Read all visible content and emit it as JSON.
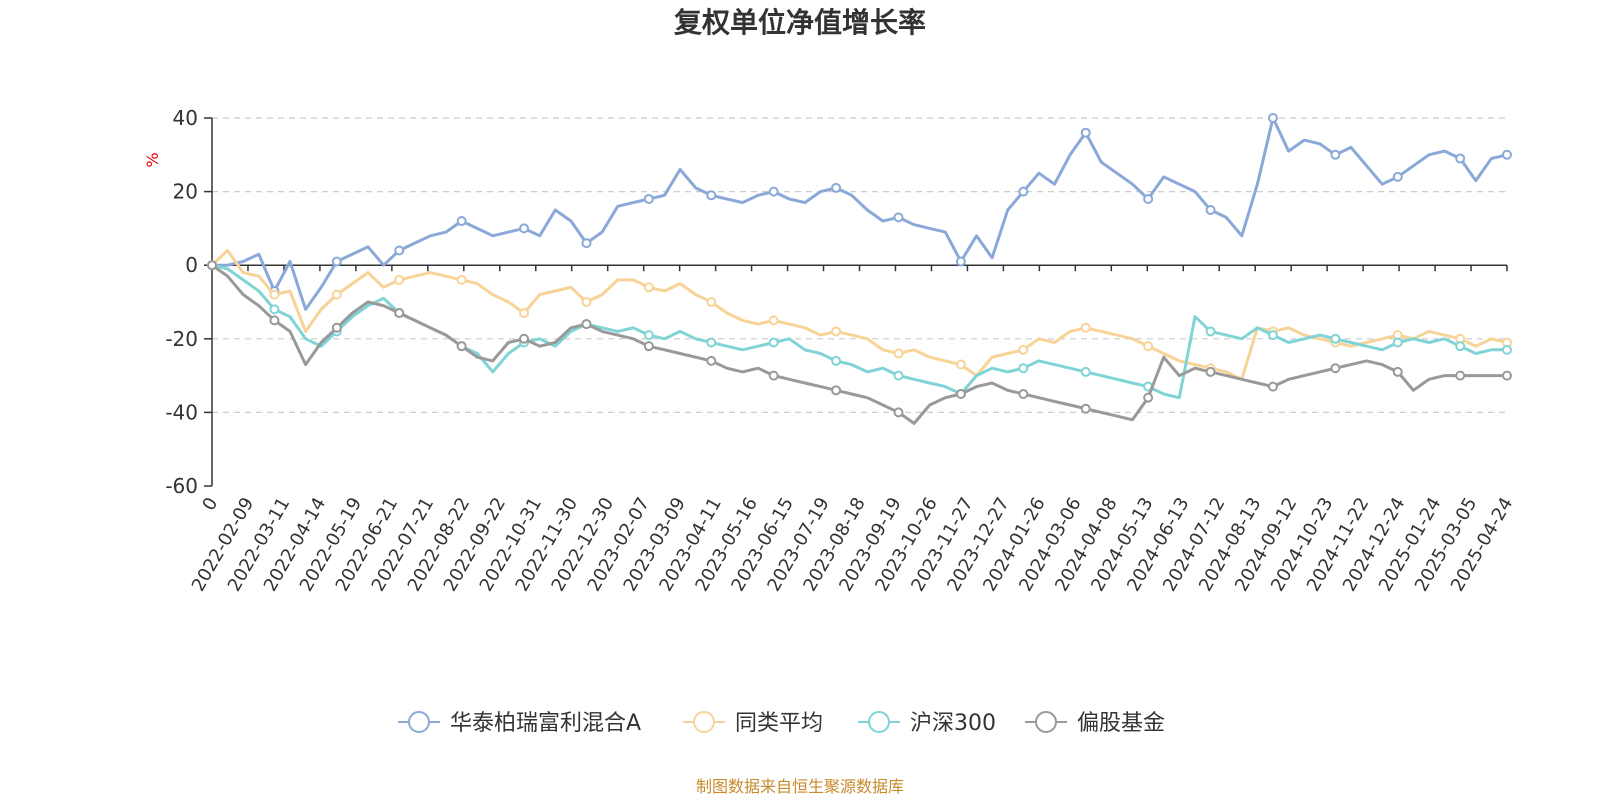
{
  "chart_data": {
    "type": "line",
    "title": "复权单位净值增长率",
    "ylabel": "%",
    "ylim": [
      -60,
      40
    ],
    "yticks": [
      40,
      20,
      0,
      -20,
      -40,
      -60
    ],
    "xtick_labels": [
      "0",
      "2022-02-09",
      "2022-03-11",
      "2022-04-14",
      "2022-05-19",
      "2022-06-21",
      "2022-07-21",
      "2022-08-22",
      "2022-09-22",
      "2022-10-31",
      "2022-11-30",
      "2022-12-30",
      "2023-02-07",
      "2023-03-09",
      "2023-04-11",
      "2023-05-16",
      "2023-06-15",
      "2023-07-19",
      "2023-08-18",
      "2023-09-19",
      "2023-10-26",
      "2023-11-27",
      "2023-12-27",
      "2024-01-26",
      "2024-03-06",
      "2024-04-08",
      "2024-05-13",
      "2024-06-13",
      "2024-07-12",
      "2024-08-13",
      "2024-09-12",
      "2024-10-23",
      "2024-11-22",
      "2024-12-24",
      "2025-01-24",
      "2025-03-05",
      "2025-04-24"
    ],
    "grid": true,
    "legend_position": "bottom",
    "source_note": "制图数据来自恒生聚源数据库",
    "series": [
      {
        "name": "华泰柏瑞富利混合A",
        "color": "#8aa8d8",
        "values": [
          0,
          0,
          1,
          3,
          -7,
          1,
          -12,
          -6,
          1,
          3,
          5,
          0,
          4,
          6,
          8,
          9,
          12,
          10,
          8,
          9,
          10,
          8,
          15,
          12,
          6,
          9,
          16,
          17,
          18,
          19,
          26,
          21,
          19,
          18,
          17,
          19,
          20,
          18,
          17,
          20,
          21,
          19,
          15,
          12,
          13,
          11,
          10,
          9,
          1,
          8,
          2,
          15,
          20,
          25,
          22,
          30,
          36,
          28,
          25,
          22,
          18,
          24,
          22,
          20,
          15,
          13,
          8,
          22,
          40,
          31,
          34,
          33,
          30,
          32,
          27,
          22,
          24,
          27,
          30,
          31,
          29,
          23,
          29,
          30
        ]
      },
      {
        "name": "同类平均",
        "color": "#f8d397",
        "values": [
          0,
          4,
          -2,
          -3,
          -8,
          -7,
          -18,
          -12,
          -8,
          -5,
          -2,
          -6,
          -4,
          -3,
          -2,
          -3,
          -4,
          -5,
          -8,
          -10,
          -13,
          -8,
          -7,
          -6,
          -10,
          -8,
          -4,
          -4,
          -6,
          -7,
          -5,
          -8,
          -10,
          -13,
          -15,
          -16,
          -15,
          -16,
          -17,
          -19,
          -18,
          -19,
          -20,
          -23,
          -24,
          -23,
          -25,
          -26,
          -27,
          -30,
          -25,
          -24,
          -23,
          -20,
          -21,
          -18,
          -17,
          -18,
          -19,
          -20,
          -22,
          -24,
          -26,
          -27,
          -28,
          -29,
          -31,
          -17,
          -18,
          -17,
          -19,
          -20,
          -21,
          -22,
          -21,
          -20,
          -19,
          -20,
          -18,
          -19,
          -20,
          -22,
          -20,
          -21
        ]
      },
      {
        "name": "沪深300",
        "color": "#80d4d6",
        "values": [
          0,
          -1,
          -4,
          -7,
          -12,
          -14,
          -20,
          -22,
          -18,
          -14,
          -11,
          -9,
          -13,
          -15,
          -17,
          -19,
          -22,
          -24,
          -29,
          -24,
          -21,
          -20,
          -22,
          -18,
          -16,
          -17,
          -18,
          -17,
          -19,
          -20,
          -18,
          -20,
          -21,
          -22,
          -23,
          -22,
          -21,
          -20,
          -23,
          -24,
          -26,
          -27,
          -29,
          -28,
          -30,
          -31,
          -32,
          -33,
          -35,
          -30,
          -28,
          -29,
          -28,
          -26,
          -27,
          -28,
          -29,
          -30,
          -31,
          -32,
          -33,
          -35,
          -36,
          -14,
          -18,
          -19,
          -20,
          -17,
          -19,
          -21,
          -20,
          -19,
          -20,
          -21,
          -22,
          -23,
          -21,
          -20,
          -21,
          -20,
          -22,
          -24,
          -23,
          -23
        ]
      },
      {
        "name": "偏股基金",
        "color": "#999999",
        "values": [
          0,
          -3,
          -8,
          -11,
          -15,
          -18,
          -27,
          -21,
          -17,
          -13,
          -10,
          -11,
          -13,
          -15,
          -17,
          -19,
          -22,
          -25,
          -26,
          -21,
          -20,
          -22,
          -21,
          -17,
          -16,
          -18,
          -19,
          -20,
          -22,
          -23,
          -24,
          -25,
          -26,
          -28,
          -29,
          -28,
          -30,
          -31,
          -32,
          -33,
          -34,
          -35,
          -36,
          -38,
          -40,
          -43,
          -38,
          -36,
          -35,
          -33,
          -32,
          -34,
          -35,
          -36,
          -37,
          -38,
          -39,
          -40,
          -41,
          -42,
          -36,
          -25,
          -30,
          -28,
          -29,
          -30,
          -31,
          -32,
          -33,
          -31,
          -30,
          -29,
          -28,
          -27,
          -26,
          -27,
          -29,
          -34,
          -31,
          -30,
          -30,
          -30,
          -30,
          -30
        ]
      }
    ]
  }
}
